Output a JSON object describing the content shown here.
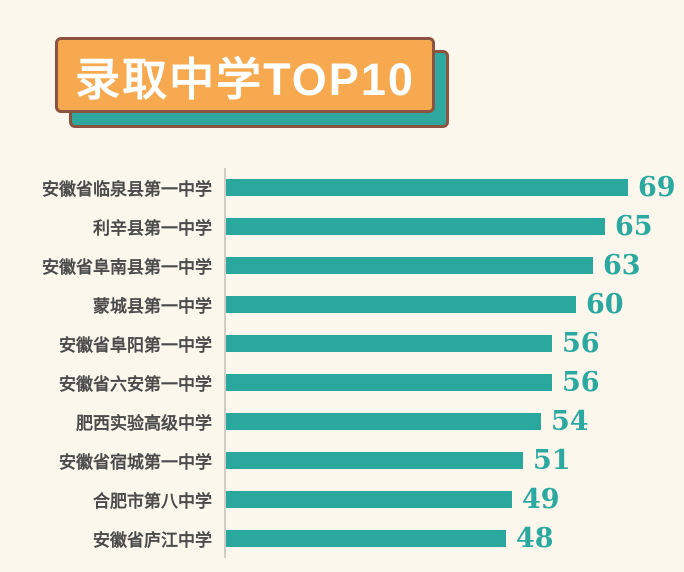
{
  "page": {
    "background_color": "#FBF7EC"
  },
  "title": {
    "text": "录取中学TOP10",
    "banner_color": "#F6A94F",
    "shadow_color": "#2FA99F",
    "border_color": "#8C5340",
    "text_color": "#FFFFFF"
  },
  "chart_data": {
    "type": "bar",
    "orientation": "horizontal",
    "title": "录取中学TOP10",
    "categories": [
      "安徽省临泉县第一中学",
      "利辛县第一中学",
      "安徽省阜南县第一中学",
      "蒙城县第一中学",
      "安徽省阜阳第一中学",
      "安徽省六安第一中学",
      "肥西实验高级中学",
      "安徽省宿城第一中学",
      "合肥市第八中学",
      "安徽省庐江中学"
    ],
    "values": [
      69,
      65,
      63,
      60,
      56,
      56,
      54,
      51,
      49,
      48
    ],
    "xlim": [
      0,
      78
    ],
    "grid": false,
    "legend": false,
    "data_labels": true,
    "bar_color": "#2BA89E",
    "value_label_color": "#2BA9A0",
    "category_label_color": "#4B4B4B",
    "axis_line_color": "#D2CEC5"
  }
}
